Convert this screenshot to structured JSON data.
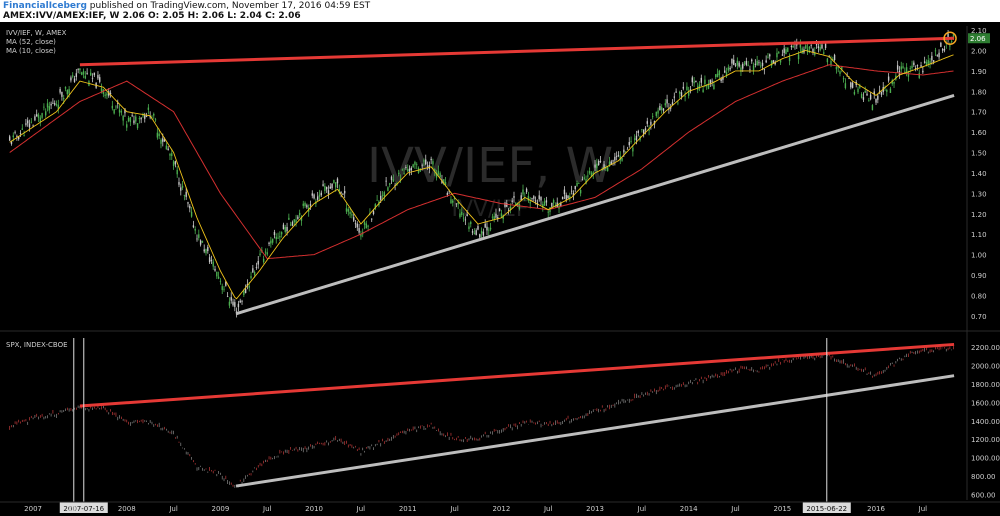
{
  "header": {
    "author": "FinancialIceberg",
    "published_text": "published on TradingView.com, November 17, 2016 04:59 EST",
    "line2_symbol": "AMEX:IVV/AMEX:IEF, W",
    "line2_values": "2.06 O: 2.05 H: 2.06 L: 2.04 C: 2.06"
  },
  "panels": {
    "top_legend": [
      "IVV/IEF, W, AMEX",
      "MA (52, close)",
      "MA (10, close)"
    ],
    "bottom_legend": [
      "SPX, INDEX-CBOE"
    ],
    "watermark": "IVV/IEF, W",
    "watermark_sub": "IVV/IEF",
    "price_badge": "2.06"
  },
  "colors": {
    "up": "#4caf50",
    "down": "#c8c8c8",
    "ma52": "#d32f2f",
    "ma10": "#f0c419",
    "resistance": "#e53935",
    "support": "#bdbdbd",
    "axis_text": "#cfcfcf",
    "badge_bg": "#2e7d32",
    "circle": "#f5a623"
  },
  "chart_data": [
    {
      "type": "line",
      "title": "IVV/IEF, W, AMEX",
      "y_ticks": [
        0.7,
        0.8,
        0.9,
        1.0,
        1.1,
        1.2,
        1.3,
        1.4,
        1.5,
        1.6,
        1.7,
        1.8,
        1.9,
        2.0,
        2.1
      ],
      "ylim": [
        0.65,
        2.12
      ],
      "grid": false,
      "legend": "top-left",
      "x_tick_labels": [
        "2007",
        "Jul",
        "2008",
        "Jul",
        "2009",
        "Jul",
        "2010",
        "Jul",
        "2011",
        "Jul",
        "2012",
        "Jul",
        "2013",
        "Jul",
        "2014",
        "Jul",
        "2015",
        "Jul",
        "2016",
        "Jul"
      ],
      "series": [
        {
          "name": "IVV/IEF",
          "x": [
            "2006-10",
            "2007-01",
            "2007-04",
            "2007-07",
            "2007-10",
            "2008-01",
            "2008-04",
            "2008-07",
            "2008-10",
            "2009-01",
            "2009-03",
            "2009-06",
            "2009-09",
            "2010-01",
            "2010-04",
            "2010-07",
            "2010-10",
            "2011-01",
            "2011-04",
            "2011-07",
            "2011-10",
            "2012-01",
            "2012-04",
            "2012-07",
            "2012-10",
            "2013-01",
            "2013-04",
            "2013-07",
            "2013-10",
            "2014-01",
            "2014-04",
            "2014-07",
            "2014-10",
            "2015-01",
            "2015-04",
            "2015-07",
            "2015-10",
            "2016-01",
            "2016-04",
            "2016-07",
            "2016-11"
          ],
          "values": [
            1.55,
            1.65,
            1.75,
            1.9,
            1.82,
            1.65,
            1.7,
            1.45,
            1.1,
            0.88,
            0.72,
            0.98,
            1.12,
            1.28,
            1.35,
            1.1,
            1.32,
            1.42,
            1.45,
            1.25,
            1.1,
            1.2,
            1.3,
            1.22,
            1.3,
            1.42,
            1.48,
            1.6,
            1.72,
            1.82,
            1.85,
            1.92,
            1.92,
            1.98,
            2.02,
            1.98,
            1.82,
            1.75,
            1.9,
            1.92,
            2.06
          ]
        },
        {
          "name": "MA (52, close)",
          "x": [
            "2006-10",
            "2007-07",
            "2008-01",
            "2008-07",
            "2009-01",
            "2009-07",
            "2010-01",
            "2010-07",
            "2011-01",
            "2011-07",
            "2012-01",
            "2012-07",
            "2013-01",
            "2013-07",
            "2014-01",
            "2014-07",
            "2015-01",
            "2015-07",
            "2016-01",
            "2016-07",
            "2016-11"
          ],
          "values": [
            1.5,
            1.75,
            1.85,
            1.7,
            1.3,
            0.98,
            1.0,
            1.1,
            1.22,
            1.3,
            1.25,
            1.22,
            1.28,
            1.42,
            1.6,
            1.75,
            1.85,
            1.93,
            1.9,
            1.88,
            1.9
          ]
        },
        {
          "name": "MA (10, close)",
          "x": [
            "2006-10",
            "2007-04",
            "2007-07",
            "2007-10",
            "2008-01",
            "2008-04",
            "2008-07",
            "2008-10",
            "2009-01",
            "2009-03",
            "2009-06",
            "2009-09",
            "2010-01",
            "2010-04",
            "2010-07",
            "2010-10",
            "2011-01",
            "2011-04",
            "2011-07",
            "2011-10",
            "2012-01",
            "2012-04",
            "2012-07",
            "2012-10",
            "2013-01",
            "2013-04",
            "2013-07",
            "2013-10",
            "2014-01",
            "2014-04",
            "2014-07",
            "2014-10",
            "2015-01",
            "2015-04",
            "2015-07",
            "2015-10",
            "2016-01",
            "2016-04",
            "2016-07",
            "2016-11"
          ],
          "values": [
            1.55,
            1.7,
            1.85,
            1.82,
            1.7,
            1.68,
            1.5,
            1.18,
            0.92,
            0.78,
            0.92,
            1.08,
            1.25,
            1.32,
            1.15,
            1.28,
            1.4,
            1.43,
            1.28,
            1.15,
            1.18,
            1.28,
            1.22,
            1.28,
            1.4,
            1.46,
            1.58,
            1.7,
            1.8,
            1.84,
            1.9,
            1.9,
            1.96,
            2.0,
            1.97,
            1.85,
            1.78,
            1.88,
            1.92,
            1.98
          ]
        }
      ],
      "trendlines": {
        "resistance": {
          "x": [
            "2007-07",
            "2016-11"
          ],
          "values": [
            1.93,
            2.06
          ]
        },
        "support": {
          "x": [
            "2009-03",
            "2016-11"
          ],
          "values": [
            0.71,
            1.78
          ]
        }
      }
    },
    {
      "type": "line",
      "title": "SPX, INDEX-CBOE",
      "y_ticks": [
        600,
        800,
        1000,
        1200,
        1400,
        1600,
        1800,
        2000,
        2200
      ],
      "ylim": [
        560,
        2300
      ],
      "grid": false,
      "legend": "top-left",
      "x_tick_labels": [
        "2007",
        "2007-07-16",
        "2008",
        "Jul",
        "2009",
        "Jul",
        "2010",
        "Jul",
        "2011",
        "Jul",
        "2012",
        "Jul",
        "2013",
        "Jul",
        "2014",
        "Jul",
        "2015",
        "2015-06-22",
        "2016",
        "Jul"
      ],
      "series": [
        {
          "name": "SPX",
          "x": [
            "2006-10",
            "2007-01",
            "2007-04",
            "2007-07",
            "2007-10",
            "2008-01",
            "2008-04",
            "2008-07",
            "2008-10",
            "2009-01",
            "2009-03",
            "2009-06",
            "2009-09",
            "2010-01",
            "2010-04",
            "2010-07",
            "2010-10",
            "2011-01",
            "2011-04",
            "2011-07",
            "2011-10",
            "2012-01",
            "2012-04",
            "2012-07",
            "2012-10",
            "2013-01",
            "2013-04",
            "2013-07",
            "2013-10",
            "2014-01",
            "2014-04",
            "2014-07",
            "2014-10",
            "2015-01",
            "2015-04",
            "2015-07",
            "2015-10",
            "2016-01",
            "2016-04",
            "2016-07",
            "2016-11"
          ],
          "values": [
            1330,
            1430,
            1480,
            1550,
            1540,
            1380,
            1390,
            1260,
            900,
            820,
            680,
            920,
            1060,
            1120,
            1200,
            1060,
            1180,
            1290,
            1340,
            1200,
            1210,
            1310,
            1380,
            1360,
            1420,
            1500,
            1590,
            1690,
            1750,
            1810,
            1870,
            1960,
            1950,
            2050,
            2100,
            2100,
            2000,
            1880,
            2070,
            2170,
            2180
          ]
        }
      ],
      "trendlines": {
        "resistance": {
          "x": [
            "2007-07",
            "2016-11"
          ],
          "values": [
            1560,
            2230
          ]
        },
        "support": {
          "x": [
            "2009-03",
            "2016-11"
          ],
          "values": [
            690,
            1890
          ]
        }
      },
      "markers": [
        "2007-07-16",
        "2015-06-22"
      ]
    }
  ]
}
